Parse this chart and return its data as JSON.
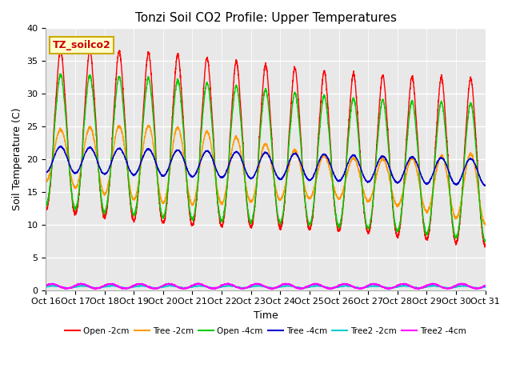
{
  "title": "Tonzi Soil CO2 Profile: Upper Temperatures",
  "xlabel": "Time",
  "ylabel": "Soil Temperature (C)",
  "annotation": "TZ_soilco2",
  "ylim": [
    0,
    40
  ],
  "yticks": [
    0,
    5,
    10,
    15,
    20,
    25,
    30,
    35,
    40
  ],
  "xtick_labels": [
    "Oct 16",
    "Oct 17",
    "Oct 18",
    "Oct 19",
    "Oct 20",
    "Oct 21",
    "Oct 22",
    "Oct 23",
    "Oct 24",
    "Oct 25",
    "Oct 26",
    "Oct 27",
    "Oct 28",
    "Oct 29",
    "Oct 30",
    "Oct 31"
  ],
  "series_colors": [
    "#ff0000",
    "#ff9900",
    "#00cc00",
    "#0000cc",
    "#00cccc",
    "#ff00ff"
  ],
  "series_labels": [
    "Open -2cm",
    "Tree -2cm",
    "Open -4cm",
    "Tree -4cm",
    "Tree2 -2cm",
    "Tree2 -4cm"
  ],
  "bg_color": "#e8e8e8",
  "n_days": 15
}
